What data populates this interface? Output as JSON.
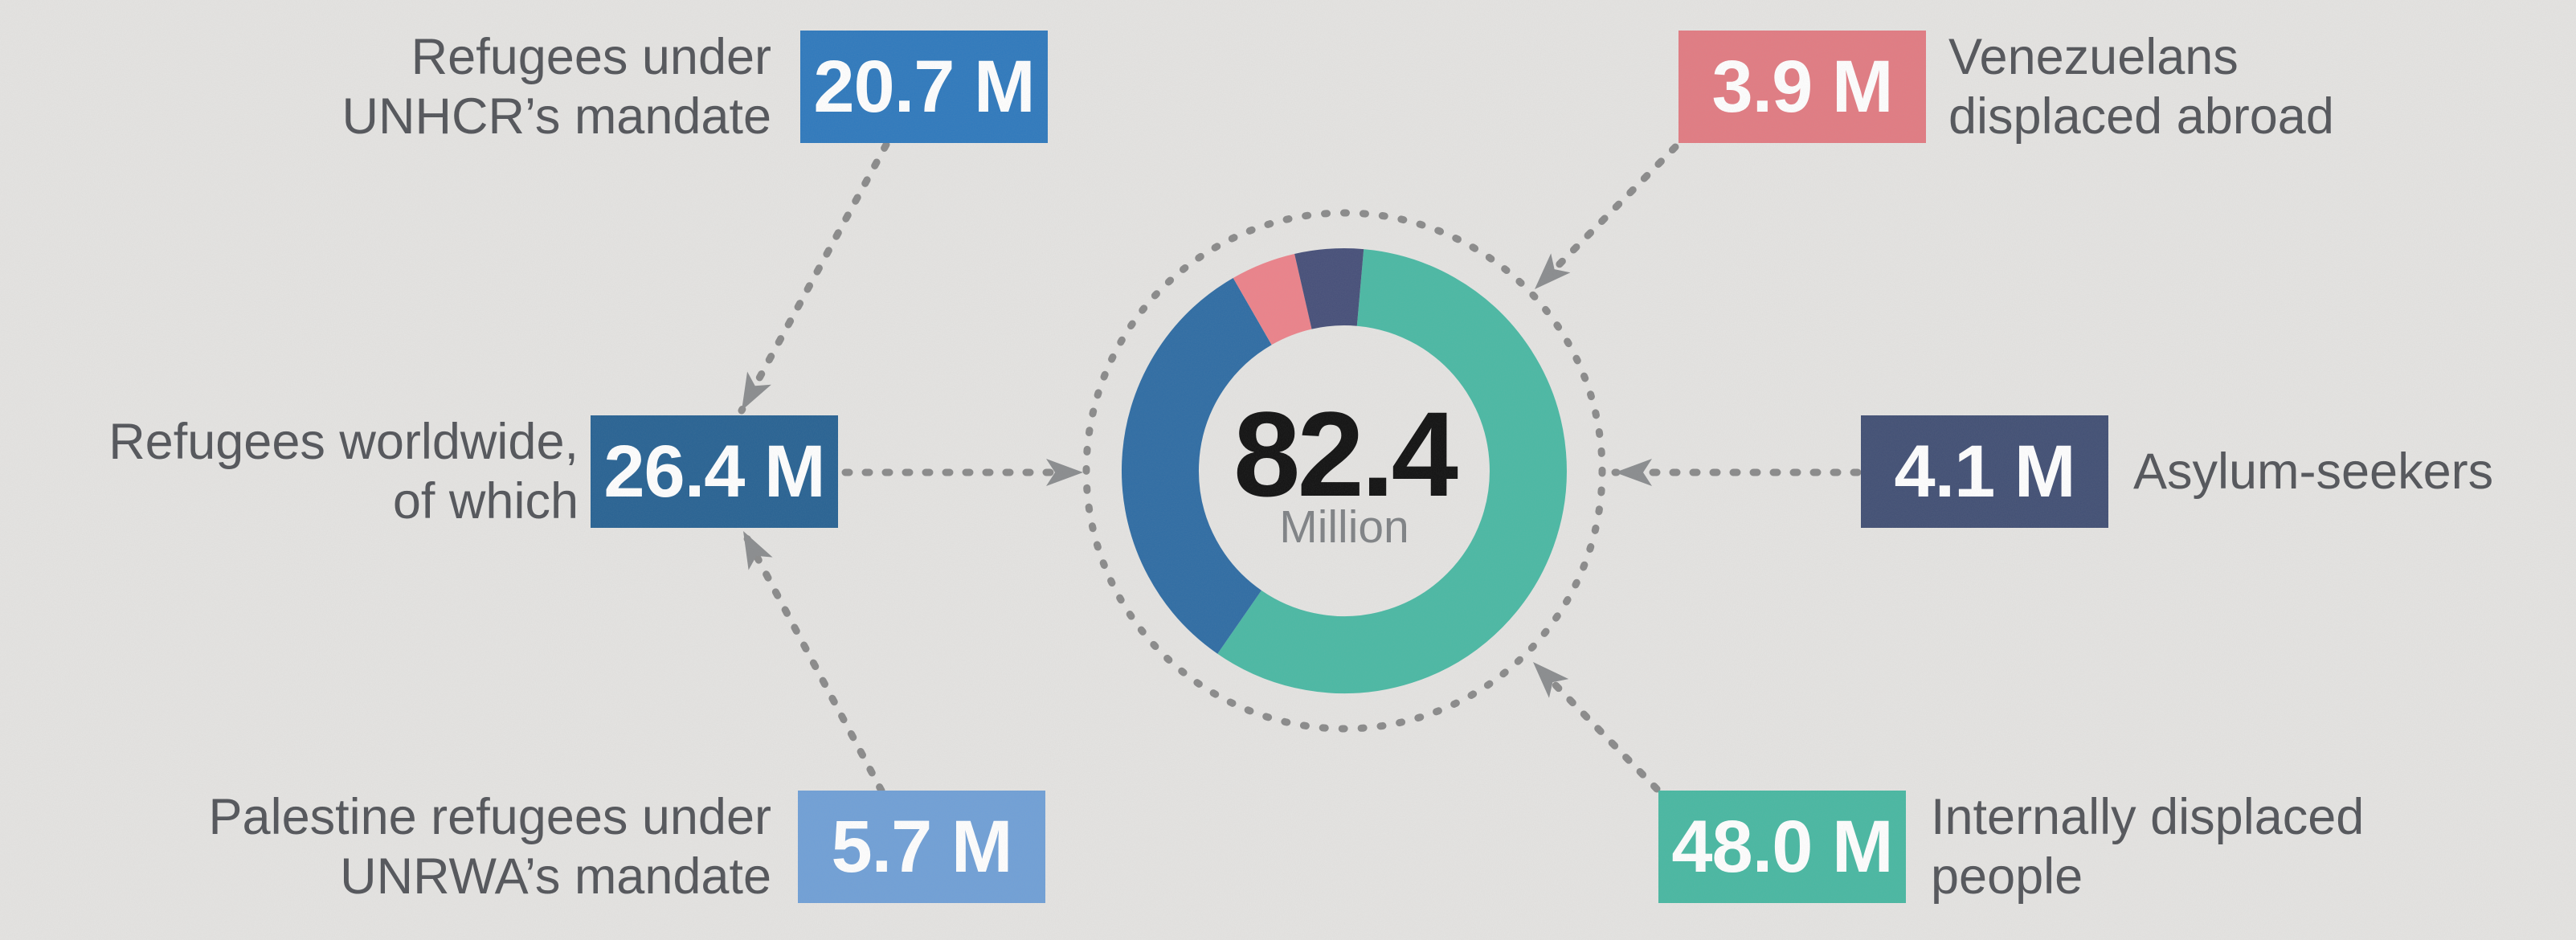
{
  "background": "#e5e4e2",
  "styles": {
    "label_color": "#525459",
    "badge_text_color": "#ffffff",
    "dotted_color": "#8a8a8a",
    "arrow_color": "#8a8c8e",
    "center_value_color": "#101010",
    "center_unit_color": "#7f8285"
  },
  "center": {
    "value": "82.4",
    "unit": "Million"
  },
  "chart_data": {
    "type": "pie",
    "subtype": "donut",
    "title": "82.4 Million displaced people",
    "center_label": "82.4",
    "center_sublabel": "Million",
    "total": 82.4,
    "start_angle_deg": 5,
    "clockwise": true,
    "legend_position": "none",
    "segments": [
      {
        "id": "idp",
        "label": "Internally displaced people",
        "value": 48.0,
        "color": "#4ab9a4"
      },
      {
        "id": "refugees",
        "label": "Refugees worldwide",
        "value": 26.4,
        "color": "#2e6ca4"
      },
      {
        "id": "venezuelans",
        "label": "Venezuelans displaced abroad",
        "value": 3.9,
        "color": "#ec828a"
      },
      {
        "id": "asylum",
        "label": "Asylum-seekers",
        "value": 4.1,
        "color": "#464f79"
      }
    ]
  },
  "callouts": [
    {
      "id": "unhcr",
      "value": "20.7 M",
      "lines": [
        "Refugees under",
        "UNHCR’s mandate"
      ],
      "badge_color": "#2e79bd",
      "side": "left"
    },
    {
      "id": "worldwide",
      "value": "26.4 M",
      "lines": [
        "Refugees worldwide,",
        "of which"
      ],
      "badge_color": "#276293",
      "side": "left"
    },
    {
      "id": "unrwa",
      "value": "5.7 M",
      "lines": [
        "Palestine refugees under",
        "UNRWA’s mandate"
      ],
      "badge_color": "#70a0d7",
      "side": "left"
    },
    {
      "id": "venezuelans",
      "value": "3.9 M",
      "lines": [
        "Venezuelans",
        "displaced abroad"
      ],
      "badge_color": "#e27b82",
      "side": "right"
    },
    {
      "id": "asylum",
      "value": "4.1 M",
      "lines": [
        "Asylum-seekers"
      ],
      "badge_color": "#414f74",
      "side": "right"
    },
    {
      "id": "idp",
      "value": "48.0 M",
      "lines": [
        "Internally displaced",
        "people"
      ],
      "badge_color": "#48b8a2",
      "side": "right"
    }
  ]
}
